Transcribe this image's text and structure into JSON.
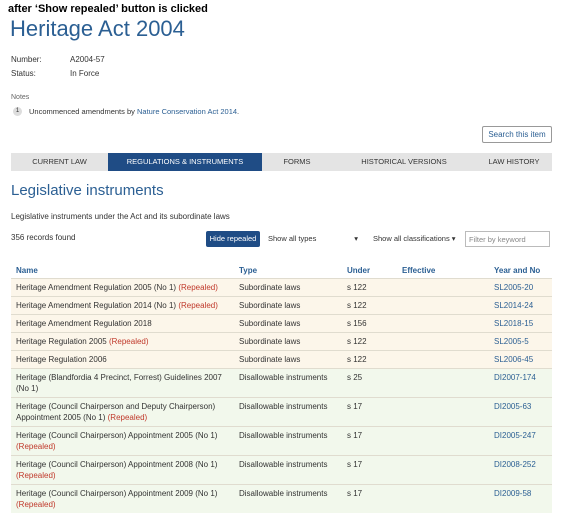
{
  "caption": "after ‘Show repealed’ button is clicked",
  "header": {
    "title": "Heritage Act 2004",
    "number_label": "Number:",
    "number": "A2004-57",
    "status_label": "Status:",
    "status": "In Force"
  },
  "notes": {
    "label": "Notes",
    "items": [
      {
        "index": "1",
        "text": "Uncommenced amendments by",
        "link": "Nature Conservation Act 2014",
        "suffix": "."
      }
    ]
  },
  "search_button": "Search this item",
  "tabs": [
    "CURRENT LAW",
    "REGULATIONS & INSTRUMENTS",
    "FORMS",
    "HISTORICAL VERSIONS",
    "LAW HISTORY"
  ],
  "section": {
    "heading": "Legislative instruments",
    "description": "Legislative instruments under the Act and its subordinate laws",
    "records": "356 records found"
  },
  "controls": {
    "hide_repealed": "Hide repealed",
    "types": "Show all types",
    "classifications": "Show all classifications",
    "filter_placeholder": "Filter by keyword"
  },
  "table": {
    "columns": [
      "Name",
      "Type",
      "Under",
      "Effective",
      "Year and No"
    ],
    "rows": [
      {
        "name": "Heritage Amendment Regulation 2005 (No 1)",
        "status": "(Repealed)",
        "type": "Subordinate laws",
        "under": "s 122",
        "year": "SL2005-20"
      },
      {
        "name": "Heritage Amendment Regulation 2014 (No 1)",
        "status": "(Repealed)",
        "type": "Subordinate laws",
        "under": "s 122",
        "year": "SL2014-24"
      },
      {
        "name": "Heritage Amendment Regulation 2018",
        "type": "Subordinate laws",
        "under": "s 156",
        "year": "SL2018-15"
      },
      {
        "name": "Heritage Regulation 2005",
        "status": "(Repealed)",
        "type": "Subordinate laws",
        "under": "s 122",
        "year": "SL2005-5"
      },
      {
        "name": "Heritage Regulation 2006",
        "type": "Subordinate laws",
        "under": "s 122",
        "year": "SL2006-45"
      },
      {
        "name": "Heritage (Blandfordia 4 Precinct, Forrest) Guidelines 2007 (No 1)",
        "type": "Disallowable instruments",
        "under": "s 25",
        "year": "DI2007-174"
      },
      {
        "name": "Heritage (Council Chairperson and Deputy Chairperson) Appointment 2005 (No 1)",
        "status": "(Repealed)",
        "type": "Disallowable instruments",
        "under": "s 17",
        "year": "DI2005-63"
      },
      {
        "name": "Heritage (Council Chairperson) Appointment 2005 (No 1)",
        "status": "(Repealed)",
        "type": "Disallowable instruments",
        "under": "s 17",
        "year": "DI2005-247"
      },
      {
        "name": "Heritage (Council Chairperson) Appointment 2008 (No 1)",
        "status": "(Repealed)",
        "type": "Disallowable instruments",
        "under": "s 17",
        "year": "DI2008-252"
      },
      {
        "name": "Heritage (Council Chairperson) Appointment 2009 (No 1)",
        "status": "(Repealed)",
        "type": "Disallowable instruments",
        "under": "s 17",
        "year": "DI2009-58"
      }
    ]
  }
}
